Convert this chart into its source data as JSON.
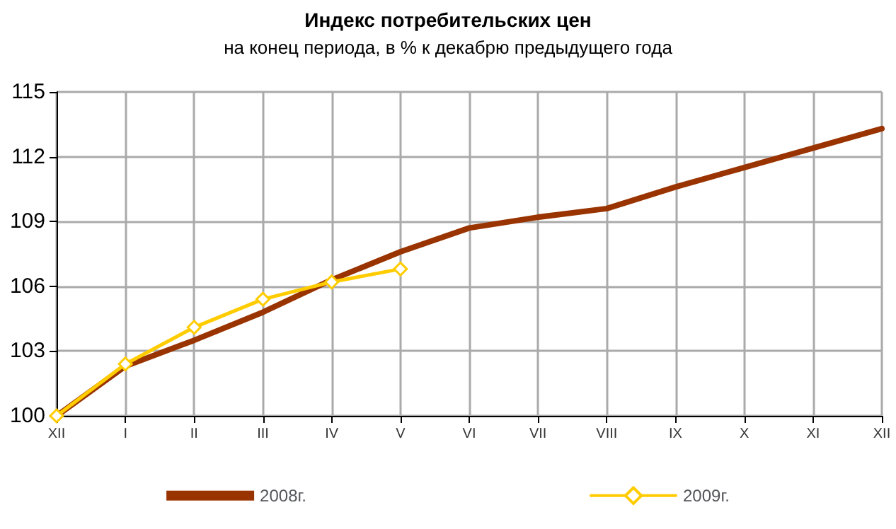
{
  "chart_data": {
    "type": "line",
    "title": "Индекс потребительских цен",
    "subtitle": "на конец периода, в % к декабрю предыдущего года",
    "categories": [
      "XII",
      "I",
      "II",
      "III",
      "IV",
      "V",
      "VI",
      "VII",
      "VIII",
      "IX",
      "X",
      "XI",
      "XII"
    ],
    "series": [
      {
        "name": "2008г.",
        "color": "#993300",
        "marker": "none",
        "values": [
          100,
          102.3,
          103.5,
          104.8,
          106.3,
          107.6,
          108.7,
          109.2,
          109.6,
          110.6,
          111.5,
          112.4,
          113.3
        ]
      },
      {
        "name": "2009г.",
        "color": "#ffcc00",
        "marker": "diamond",
        "values": [
          100,
          102.4,
          104.1,
          105.4,
          106.2,
          106.8,
          null,
          null,
          null,
          null,
          null,
          null,
          null
        ]
      }
    ],
    "ylim": [
      100,
      115
    ],
    "yticks": [
      100,
      103,
      106,
      109,
      112,
      115
    ],
    "grid": true,
    "legend": "bottom"
  }
}
